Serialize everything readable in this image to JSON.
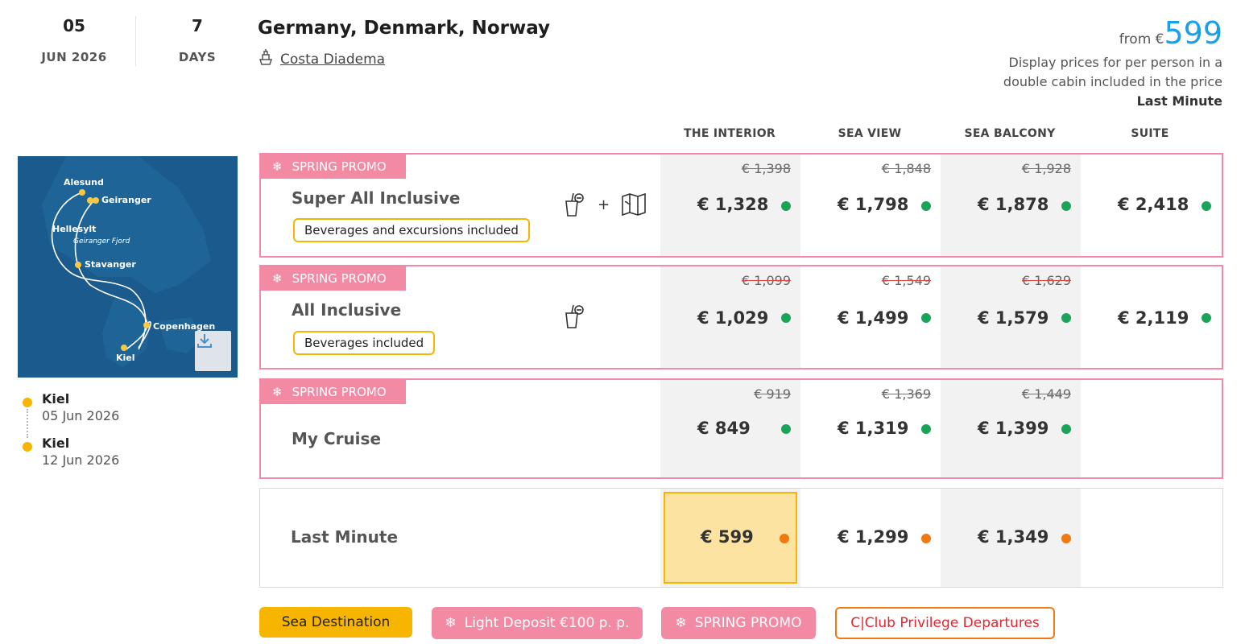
{
  "header": {
    "day": "05",
    "month_year": "JUN 2026",
    "days_count": "7",
    "days_label": "DAYS",
    "title": "Germany, Denmark, Norway",
    "ship_name": "Costa Diadema",
    "ship_icon": "ship-icon",
    "from_label": "from €",
    "from_price": "599",
    "note_line1": "Display prices for per person in a",
    "note_line2": "double cabin included in the price",
    "note_fare": "Last Minute"
  },
  "map": {
    "ports": [
      "Alesund",
      "Geiranger",
      "Hellesylt",
      "Geiranger Fjord",
      "Stavanger",
      "Copenhagen",
      "Kiel"
    ],
    "download_icon": "download-icon"
  },
  "itinerary": [
    {
      "port": "Kiel",
      "date": "05 Jun 2026"
    },
    {
      "port": "Kiel",
      "date": "12 Jun 2026"
    }
  ],
  "columns": [
    "THE INTERIOR",
    "SEA VIEW",
    "SEA BALCONY",
    "SUITE"
  ],
  "rows": [
    {
      "badge": "SPRING PROMO",
      "name": "Super All Inclusive",
      "tag": "Beverages and excursions included",
      "icons": [
        "drink-icon",
        "map-icon"
      ],
      "plus": "+",
      "prices": [
        {
          "old": "€ 1,398",
          "new": "€ 1,328",
          "status": "available"
        },
        {
          "old": "€ 1,848",
          "new": "€ 1,798",
          "status": "available"
        },
        {
          "old": "€ 1,928",
          "new": "€ 1,878",
          "status": "available"
        },
        {
          "old": "",
          "new": "€ 2,418",
          "status": "available"
        }
      ]
    },
    {
      "badge": "SPRING PROMO",
      "name": "All Inclusive",
      "tag": "Beverages included",
      "icons": [
        "drink-icon"
      ],
      "prices": [
        {
          "old": "€ 1,099",
          "new": "€ 1,029",
          "status": "available"
        },
        {
          "old": "€ 1,549",
          "new": "€ 1,499",
          "status": "available"
        },
        {
          "old": "€ 1,629",
          "new": "€ 1,579",
          "status": "available"
        },
        {
          "old": "",
          "new": "€ 2,119",
          "status": "available"
        }
      ]
    },
    {
      "badge": "SPRING PROMO",
      "name": "My Cruise",
      "prices": [
        {
          "old": "€ 919",
          "new": "€ 849",
          "status": "available"
        },
        {
          "old": "€ 1,369",
          "new": "€ 1,319",
          "status": "available"
        },
        {
          "old": "€ 1,449",
          "new": "€ 1,399",
          "status": "available"
        }
      ]
    },
    {
      "name": "Last Minute",
      "prices": [
        {
          "old": "",
          "new": "€ 599",
          "status": "limited",
          "selected": true
        },
        {
          "old": "",
          "new": "€ 1,299",
          "status": "limited"
        },
        {
          "old": "",
          "new": "€ 1,349",
          "status": "limited"
        }
      ]
    }
  ],
  "bottom_tags": [
    {
      "label": "Sea Destination",
      "style": "yellow"
    },
    {
      "label": "Light Deposit €100 p. p.",
      "style": "pink"
    },
    {
      "label": "SPRING PROMO",
      "style": "pink"
    },
    {
      "label": "C|Club Privilege Departures",
      "style": "outline"
    }
  ],
  "colors": {
    "accent_blue": "#1aa0e8",
    "promo_pink": "#f38aa4",
    "yellow": "#f7b500",
    "available_green": "#1ba35a",
    "limited_orange": "#f07a10"
  }
}
